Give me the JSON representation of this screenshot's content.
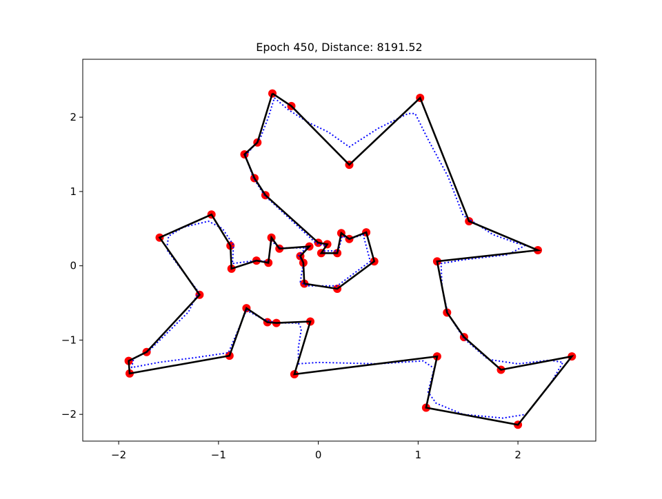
{
  "chart_data": {
    "type": "scatter",
    "title": "Epoch 450, Distance: 8191.52",
    "xlabel": "",
    "ylabel": "",
    "xlim": [
      -2.36,
      2.78
    ],
    "ylim": [
      -2.36,
      2.78
    ],
    "x_ticks": [
      -2,
      -1,
      0,
      1,
      2
    ],
    "y_ticks": [
      -2,
      -1,
      0,
      1,
      2
    ],
    "x_tick_labels": [
      "−2",
      "−1",
      "0",
      "1",
      "2"
    ],
    "y_tick_labels": [
      "−2",
      "−1",
      "0",
      "1",
      "2"
    ],
    "grid": false,
    "legend": "none",
    "colors": {
      "points": "#ff0000",
      "tour": "#000000",
      "elastic": "#0000ff"
    },
    "series": [
      {
        "kind": "cities",
        "points": [
          [
            -0.46,
            2.32
          ],
          [
            -0.27,
            2.15
          ],
          [
            0.31,
            1.36
          ],
          [
            1.02,
            2.26
          ],
          [
            1.51,
            0.6
          ],
          [
            2.2,
            0.21
          ],
          [
            1.19,
            0.06
          ],
          [
            1.29,
            -0.63
          ],
          [
            1.46,
            -0.96
          ],
          [
            1.83,
            -1.4
          ],
          [
            2.54,
            -1.22
          ],
          [
            2.0,
            -2.14
          ],
          [
            1.08,
            -1.91
          ],
          [
            1.19,
            -1.22
          ],
          [
            -0.24,
            -1.46
          ],
          [
            -0.08,
            -0.75
          ],
          [
            -0.42,
            -0.77
          ],
          [
            -0.51,
            -0.76
          ],
          [
            -0.72,
            -0.57
          ],
          [
            -0.89,
            -1.21
          ],
          [
            -1.89,
            -1.45
          ],
          [
            -1.9,
            -1.28
          ],
          [
            -1.72,
            -1.16
          ],
          [
            -1.19,
            -0.39
          ],
          [
            -1.59,
            0.38
          ],
          [
            -1.07,
            0.69
          ],
          [
            -0.88,
            0.27
          ],
          [
            -0.87,
            -0.04
          ],
          [
            -0.62,
            0.07
          ],
          [
            -0.5,
            0.04
          ],
          [
            -0.47,
            0.38
          ],
          [
            -0.39,
            0.23
          ],
          [
            -0.09,
            0.26
          ],
          [
            -0.18,
            0.13
          ],
          [
            -0.15,
            0.04
          ],
          [
            -0.14,
            -0.24
          ],
          [
            0.19,
            -0.31
          ],
          [
            0.56,
            0.06
          ],
          [
            0.48,
            0.45
          ],
          [
            0.31,
            0.36
          ],
          [
            0.23,
            0.44
          ],
          [
            0.19,
            0.17
          ],
          [
            0.03,
            0.17
          ],
          [
            0.09,
            0.29
          ],
          [
            0.0,
            0.31
          ],
          [
            -0.53,
            0.95
          ],
          [
            -0.64,
            1.18
          ],
          [
            -0.74,
            1.5
          ],
          [
            -0.61,
            1.66
          ]
        ]
      },
      {
        "kind": "tour",
        "points": [
          [
            -0.46,
            2.32
          ],
          [
            -0.27,
            2.15
          ],
          [
            0.31,
            1.36
          ],
          [
            1.02,
            2.26
          ],
          [
            1.51,
            0.6
          ],
          [
            2.2,
            0.21
          ],
          [
            1.19,
            0.06
          ],
          [
            1.29,
            -0.63
          ],
          [
            1.46,
            -0.96
          ],
          [
            1.83,
            -1.4
          ],
          [
            2.54,
            -1.22
          ],
          [
            2.0,
            -2.14
          ],
          [
            1.08,
            -1.91
          ],
          [
            1.19,
            -1.22
          ],
          [
            -0.24,
            -1.46
          ],
          [
            -0.08,
            -0.75
          ],
          [
            -0.42,
            -0.77
          ],
          [
            -0.51,
            -0.76
          ],
          [
            -0.72,
            -0.57
          ],
          [
            -0.89,
            -1.21
          ],
          [
            -1.89,
            -1.45
          ],
          [
            -1.9,
            -1.28
          ],
          [
            -1.72,
            -1.16
          ],
          [
            -1.19,
            -0.39
          ],
          [
            -1.59,
            0.38
          ],
          [
            -1.07,
            0.69
          ],
          [
            -0.88,
            0.27
          ],
          [
            -0.87,
            -0.04
          ],
          [
            -0.62,
            0.07
          ],
          [
            -0.5,
            0.04
          ],
          [
            -0.47,
            0.38
          ],
          [
            -0.39,
            0.23
          ],
          [
            -0.09,
            0.26
          ],
          [
            -0.18,
            0.13
          ],
          [
            -0.15,
            0.04
          ],
          [
            -0.14,
            -0.24
          ],
          [
            0.19,
            -0.31
          ],
          [
            0.56,
            0.06
          ],
          [
            0.48,
            0.45
          ],
          [
            0.31,
            0.36
          ],
          [
            0.23,
            0.44
          ],
          [
            0.19,
            0.17
          ],
          [
            0.03,
            0.17
          ],
          [
            0.09,
            0.29
          ],
          [
            0.0,
            0.31
          ],
          [
            -0.53,
            0.95
          ],
          [
            -0.64,
            1.18
          ],
          [
            -0.74,
            1.5
          ],
          [
            -0.61,
            1.66
          ],
          [
            -0.46,
            2.32
          ]
        ]
      },
      {
        "kind": "elastic",
        "points": [
          [
            -0.44,
            2.26
          ],
          [
            -0.3,
            2.1
          ],
          [
            -0.1,
            1.93
          ],
          [
            0.1,
            1.8
          ],
          [
            0.31,
            1.6
          ],
          [
            0.6,
            1.85
          ],
          [
            0.9,
            2.05
          ],
          [
            0.97,
            2.05
          ],
          [
            1.1,
            1.7
          ],
          [
            1.3,
            1.2
          ],
          [
            1.45,
            0.68
          ],
          [
            1.75,
            0.42
          ],
          [
            2.0,
            0.3
          ],
          [
            2.08,
            0.28
          ],
          [
            1.9,
            0.15
          ],
          [
            1.45,
            0.08
          ],
          [
            1.23,
            0.03
          ],
          [
            1.24,
            -0.3
          ],
          [
            1.3,
            -0.65
          ],
          [
            1.46,
            -0.98
          ],
          [
            1.7,
            -1.26
          ],
          [
            2.0,
            -1.32
          ],
          [
            2.32,
            -1.27
          ],
          [
            2.45,
            -1.3
          ],
          [
            2.32,
            -1.6
          ],
          [
            2.08,
            -2.0
          ],
          [
            1.85,
            -2.05
          ],
          [
            1.45,
            -2.0
          ],
          [
            1.18,
            -1.85
          ],
          [
            1.1,
            -1.7
          ],
          [
            1.16,
            -1.38
          ],
          [
            1.05,
            -1.28
          ],
          [
            0.6,
            -1.32
          ],
          [
            0.0,
            -1.3
          ],
          [
            -0.2,
            -1.32
          ],
          [
            -0.2,
            -1.1
          ],
          [
            -0.17,
            -0.85
          ],
          [
            -0.2,
            -0.77
          ],
          [
            -0.42,
            -0.77
          ],
          [
            -0.55,
            -0.72
          ],
          [
            -0.72,
            -0.6
          ],
          [
            -0.9,
            -1.17
          ],
          [
            -1.2,
            -1.23
          ],
          [
            -1.6,
            -1.3
          ],
          [
            -1.87,
            -1.37
          ],
          [
            -1.85,
            -1.25
          ],
          [
            -1.7,
            -1.15
          ],
          [
            -1.3,
            -0.62
          ],
          [
            -1.2,
            -0.35
          ],
          [
            -1.4,
            0.0
          ],
          [
            -1.52,
            0.22
          ],
          [
            -1.5,
            0.4
          ],
          [
            -1.35,
            0.52
          ],
          [
            -1.1,
            0.6
          ],
          [
            -0.96,
            0.5
          ],
          [
            -0.85,
            0.28
          ],
          [
            -0.86,
            0.03
          ],
          [
            -0.63,
            0.07
          ],
          [
            -0.5,
            0.06
          ],
          [
            -0.47,
            0.33
          ],
          [
            -0.38,
            0.24
          ],
          [
            -0.12,
            0.24
          ],
          [
            -0.2,
            0.14
          ],
          [
            -0.15,
            0.04
          ],
          [
            -0.18,
            -0.22
          ],
          [
            -0.12,
            -0.27
          ],
          [
            0.19,
            -0.27
          ],
          [
            0.52,
            0.06
          ],
          [
            0.45,
            0.42
          ],
          [
            0.31,
            0.36
          ],
          [
            0.24,
            0.4
          ],
          [
            0.2,
            0.2
          ],
          [
            0.06,
            0.2
          ],
          [
            0.07,
            0.27
          ],
          [
            -0.02,
            0.3
          ],
          [
            -0.54,
            0.95
          ],
          [
            -0.65,
            1.18
          ],
          [
            -0.73,
            1.48
          ],
          [
            -0.58,
            1.72
          ],
          [
            -0.5,
            2.0
          ],
          [
            -0.44,
            2.26
          ]
        ]
      }
    ]
  }
}
